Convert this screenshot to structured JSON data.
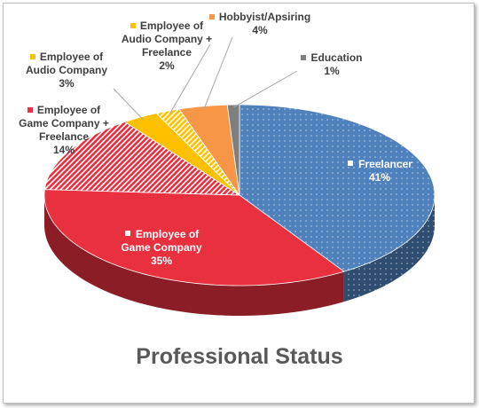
{
  "chart_data": {
    "type": "pie3d",
    "title": "Professional Status",
    "categories": [
      "Freelancer",
      "Employee of Game Company",
      "Employee of Game Company + Freelance",
      "Employee of Audio Company",
      "Employee of Audio Company + Freelance",
      "Hobbyist/Apsiring",
      "Education"
    ],
    "values": [
      41,
      35,
      14,
      3,
      2,
      4,
      1
    ],
    "value_labels": [
      "41%",
      "35%",
      "14%",
      "3%",
      "2%",
      "4%",
      "1%"
    ],
    "colors": [
      "#4f81bd",
      "#e8303f",
      "#e8303f",
      "#ffc000",
      "#ffc000",
      "#f79646",
      "#7f7f7f"
    ],
    "patterns": [
      "dots",
      "solid",
      "hatch",
      "solid",
      "hatch",
      "solid",
      "solid"
    ]
  }
}
